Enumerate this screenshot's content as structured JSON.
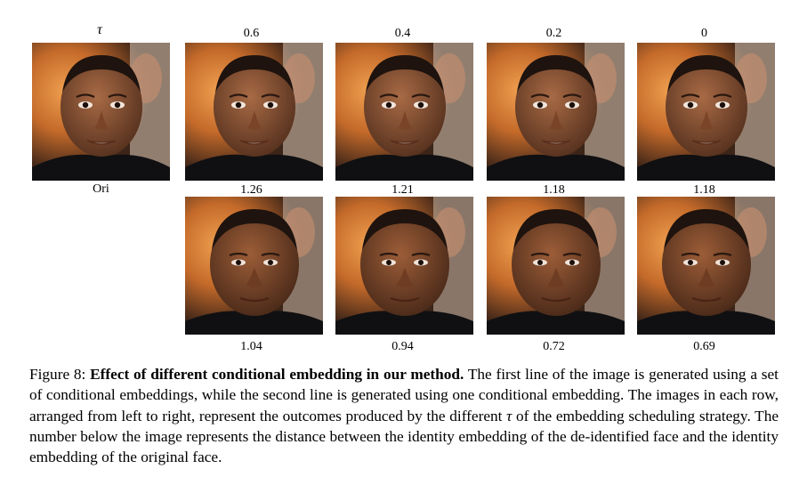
{
  "column_header": {
    "tau_symbol": "τ",
    "values": [
      "0.6",
      "0.4",
      "0.2",
      "0"
    ]
  },
  "original_label": "Ori",
  "row1_distances": [
    "1.26",
    "1.21",
    "1.18",
    "1.18"
  ],
  "row2_distances": [
    "1.04",
    "0.94",
    "0.72",
    "0.69"
  ],
  "caption": {
    "figure_label": "Figure 8:",
    "title": "Effect of different conditional embedding in our method.",
    "text_part1": "The first line of the image is generated using a set of conditional embeddings, while the second line is generated using one conditional embedding. The images in each row, arranged from left to right, represent the outcomes produced by the different",
    "tau": "τ",
    "text_part2": "of the embedding scheduling strategy. The number below the image represents the distance between the identity embedding of the de-identified face and the identity embedding of the original face."
  }
}
